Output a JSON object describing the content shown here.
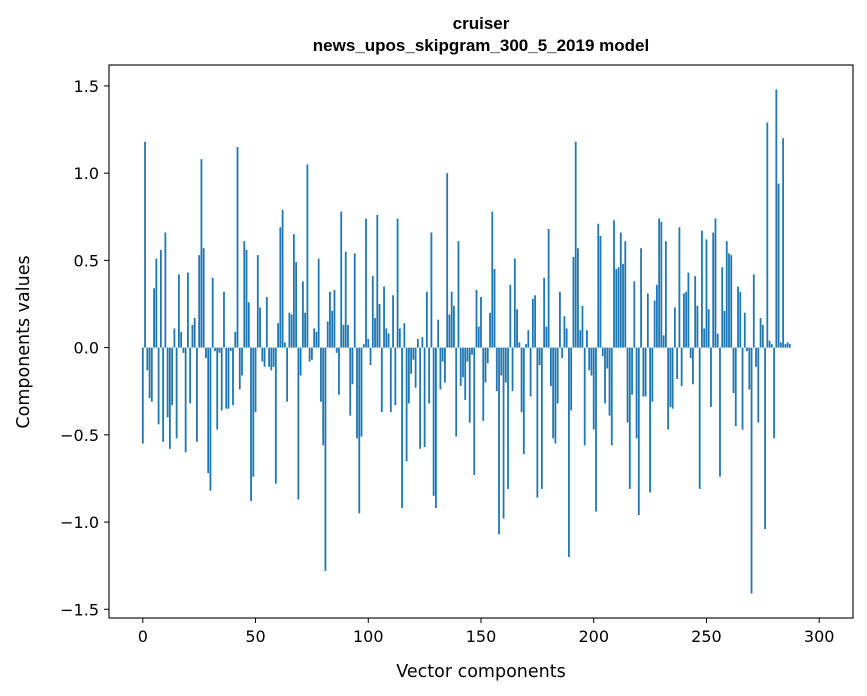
{
  "chart_data": {
    "type": "bar",
    "title": "cruiser",
    "subtitle": "news_upos_skipgram_300_5_2019 model",
    "xlabel": "Vector components",
    "ylabel": "Components values",
    "xlim": [
      -15,
      315
    ],
    "ylim": [
      -1.55,
      1.62
    ],
    "xticks": [
      0,
      50,
      100,
      150,
      200,
      250,
      300
    ],
    "yticks": [
      -1.5,
      -1.0,
      -0.5,
      0.0,
      0.5,
      1.0,
      1.5
    ],
    "xtick_labels": [
      "0",
      "50",
      "100",
      "150",
      "200",
      "250",
      "300"
    ],
    "ytick_labels": [
      "−1.5",
      "−1.0",
      "−0.5",
      "0.0",
      "0.5",
      "1.0",
      "1.5"
    ],
    "bar_color": "#1f77b4",
    "values": [
      -0.55,
      1.18,
      -0.13,
      -0.29,
      -0.31,
      0.34,
      0.51,
      -0.44,
      0.56,
      -0.54,
      0.66,
      -0.4,
      -0.58,
      -0.33,
      0.11,
      -0.52,
      0.42,
      0.09,
      -0.03,
      -0.6,
      0.43,
      -0.32,
      0.13,
      0.17,
      -0.54,
      0.53,
      1.08,
      0.57,
      -0.06,
      -0.72,
      -0.82,
      0.4,
      -0.02,
      -0.47,
      -0.03,
      -0.36,
      0.32,
      -0.35,
      -0.35,
      -0.02,
      -0.33,
      0.09,
      1.15,
      -0.24,
      -0.16,
      0.61,
      0.56,
      0.26,
      -0.88,
      -0.74,
      -0.37,
      0.53,
      0.23,
      -0.08,
      -0.11,
      0.29,
      -0.11,
      -0.13,
      -0.11,
      -0.78,
      0.14,
      0.69,
      0.79,
      0.03,
      -0.31,
      0.2,
      0.19,
      0.65,
      0.49,
      -0.87,
      -0.16,
      0.38,
      0.2,
      1.05,
      -0.08,
      -0.07,
      0.11,
      0.09,
      0.51,
      -0.31,
      -0.56,
      -1.28,
      0.15,
      0.32,
      0.21,
      0.33,
      -0.03,
      -0.27,
      0.78,
      0.13,
      0.55,
      0.13,
      -0.39,
      -0.21,
      0.54,
      -0.52,
      -0.95,
      -0.51,
      0.02,
      0.74,
      0.05,
      -0.1,
      0.41,
      0.17,
      0.76,
      0.25,
      -0.37,
      0.35,
      0.11,
      0.08,
      -0.37,
      0.3,
      -0.33,
      0.74,
      0.11,
      -0.92,
      0.14,
      -0.65,
      -0.32,
      -0.15,
      -0.07,
      -0.23,
      0.05,
      -0.58,
      0.06,
      -0.57,
      0.32,
      -0.32,
      0.66,
      -0.85,
      -0.92,
      0.16,
      -0.24,
      -0.08,
      -0.2,
      1.0,
      0.19,
      0.32,
      0.24,
      -0.51,
      0.61,
      -0.22,
      -0.17,
      -0.3,
      -0.08,
      -0.43,
      -0.04,
      -0.73,
      0.33,
      0.12,
      0.29,
      -0.42,
      -0.2,
      -0.09,
      0.2,
      0.78,
      0.45,
      -0.25,
      -1.07,
      -0.16,
      -0.98,
      -0.2,
      -0.81,
      0.36,
      -0.25,
      0.51,
      0.22,
      0.03,
      -0.37,
      -0.61,
      0.02,
      0.1,
      -0.28,
      0.28,
      0.3,
      -0.86,
      -0.1,
      -0.81,
      0.4,
      0.12,
      0.68,
      -0.22,
      -0.52,
      -0.55,
      -0.32,
      0.32,
      -0.06,
      0.18,
      0.11,
      -1.2,
      -0.36,
      0.52,
      1.18,
      0.57,
      0.1,
      0.24,
      -0.56,
      0.1,
      -0.13,
      -0.16,
      -0.47,
      -0.94,
      0.71,
      0.64,
      -0.05,
      -0.32,
      -0.12,
      -0.39,
      -0.56,
      0.73,
      0.45,
      0.46,
      0.66,
      0.48,
      0.61,
      -0.43,
      -0.81,
      -0.27,
      0.38,
      -0.52,
      -0.96,
      0.57,
      -0.28,
      -0.28,
      0.31,
      -0.83,
      -0.31,
      0.27,
      0.36,
      0.74,
      0.72,
      0.07,
      0.61,
      -0.47,
      -0.34,
      -0.35,
      0.23,
      -0.18,
      0.69,
      -0.22,
      0.31,
      0.32,
      0.43,
      -0.06,
      -0.21,
      0.41,
      0.24,
      -0.81,
      0.67,
      0.11,
      0.62,
      0.22,
      -0.34,
      0.66,
      0.74,
      0.08,
      -0.74,
      0.46,
      0.21,
      0.61,
      0.54,
      0.53,
      -0.26,
      -0.45,
      0.35,
      0.32,
      -0.47,
      0.2,
      -0.02,
      -0.24,
      -1.41,
      0.42,
      -0.11,
      -0.43,
      0.17,
      0.13,
      -1.04,
      1.29,
      0.04,
      0.02,
      -0.52,
      1.48,
      0.94,
      0.03,
      1.2,
      0.02,
      0.03,
      0.02
    ]
  }
}
